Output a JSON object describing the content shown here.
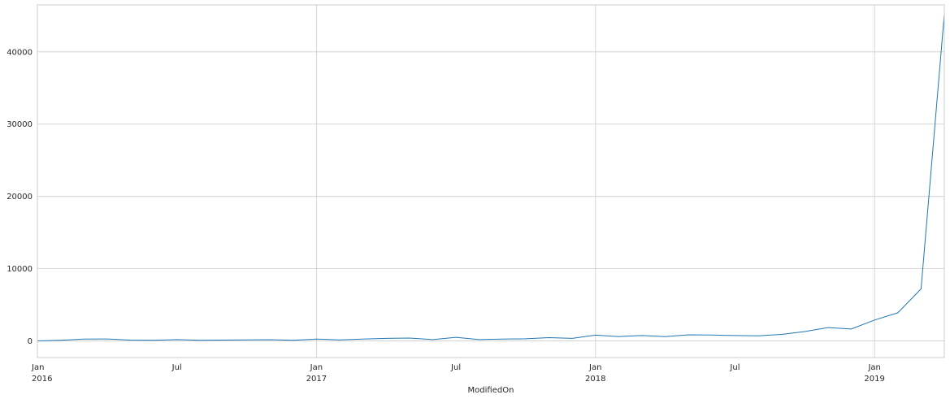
{
  "chart_data": {
    "type": "line",
    "xlabel": "ModifiedOn",
    "ylabel": "",
    "ylim": [
      -2300,
      46500
    ],
    "xlim": [
      "2016-01",
      "2019-04"
    ],
    "grid": true,
    "yticks": [
      0,
      10000,
      20000,
      30000,
      40000
    ],
    "ytick_labels": [
      "0",
      "10000",
      "20000",
      "30000",
      "40000"
    ],
    "xticks": [
      {
        "date": "2016-01",
        "line1": "Jan",
        "line2": "2016"
      },
      {
        "date": "2016-07",
        "line1": "Jul",
        "line2": ""
      },
      {
        "date": "2017-01",
        "line1": "Jan",
        "line2": "2017"
      },
      {
        "date": "2017-07",
        "line1": "Jul",
        "line2": ""
      },
      {
        "date": "2018-01",
        "line1": "Jan",
        "line2": "2018"
      },
      {
        "date": "2018-07",
        "line1": "Jul",
        "line2": ""
      },
      {
        "date": "2019-01",
        "line1": "Jan",
        "line2": "2019"
      }
    ],
    "series": [
      {
        "color": "#1f77b4",
        "x": [
          "2016-01",
          "2016-02",
          "2016-03",
          "2016-04",
          "2016-05",
          "2016-06",
          "2016-07",
          "2016-08",
          "2016-09",
          "2016-10",
          "2016-11",
          "2016-12",
          "2017-01",
          "2017-02",
          "2017-03",
          "2017-04",
          "2017-05",
          "2017-06",
          "2017-07",
          "2017-08",
          "2017-09",
          "2017-10",
          "2017-11",
          "2017-12",
          "2018-01",
          "2018-02",
          "2018-03",
          "2018-04",
          "2018-05",
          "2018-06",
          "2018-07",
          "2018-08",
          "2018-09",
          "2018-10",
          "2018-11",
          "2018-12",
          "2019-01",
          "2019-02",
          "2019-03",
          "2019-04"
        ],
        "values": [
          0,
          100,
          250,
          280,
          120,
          100,
          180,
          100,
          120,
          150,
          170,
          100,
          250,
          150,
          250,
          350,
          400,
          180,
          500,
          180,
          250,
          300,
          450,
          350,
          800,
          600,
          750,
          600,
          850,
          820,
          750,
          700,
          900,
          1300,
          1850,
          1650,
          2900,
          3900,
          7200,
          45200
        ]
      }
    ]
  }
}
